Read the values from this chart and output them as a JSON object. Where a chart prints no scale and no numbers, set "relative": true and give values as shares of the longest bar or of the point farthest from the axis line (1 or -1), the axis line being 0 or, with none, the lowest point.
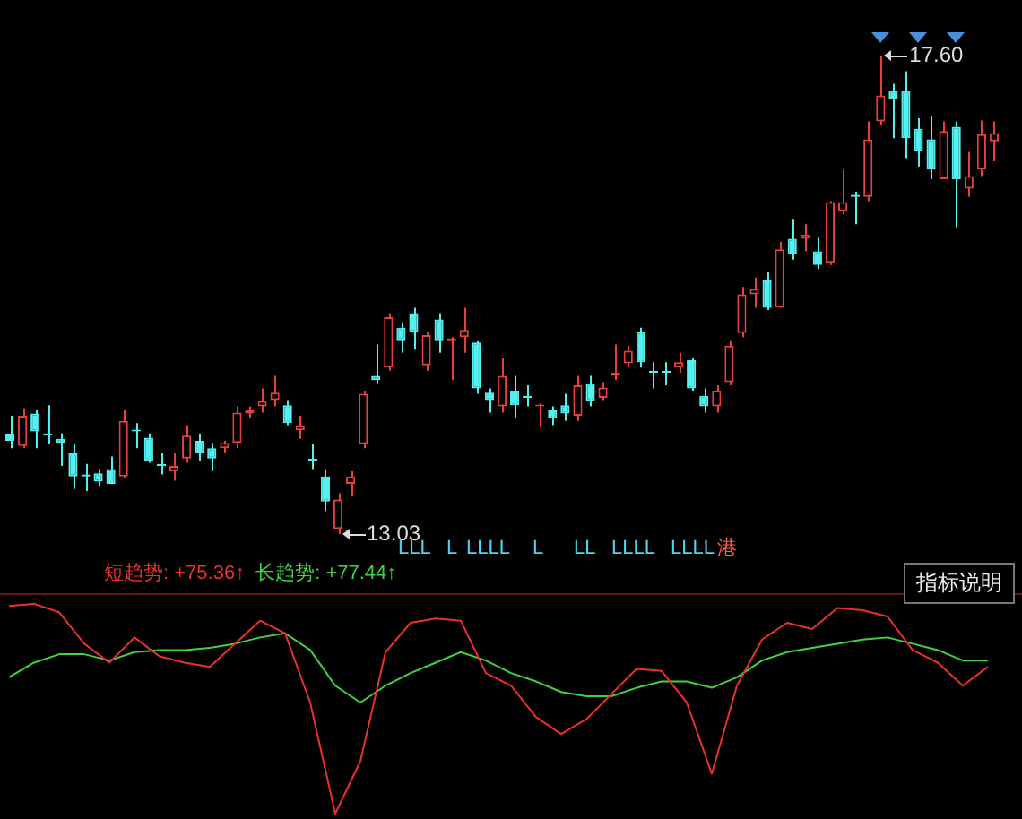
{
  "chart_data": [
    {
      "type": "candlestick",
      "categories": [
        null,
        null,
        null,
        null,
        null,
        null,
        null,
        null,
        null,
        null,
        null,
        null,
        null,
        null,
        null,
        null,
        null,
        null,
        null,
        null,
        null,
        null,
        null,
        null,
        null,
        null,
        null,
        null,
        null,
        null,
        null,
        null,
        null,
        null,
        null,
        null,
        null,
        null,
        null,
        null,
        null,
        null,
        null,
        null,
        null,
        null,
        null,
        null,
        null,
        null,
        null,
        null,
        null,
        null,
        null,
        null,
        null,
        null,
        null,
        null,
        null,
        null,
        null,
        null,
        null,
        null,
        null,
        null,
        null,
        null,
        null,
        null,
        null,
        null,
        null,
        null,
        null,
        null,
        null
      ],
      "ohlc": [
        [
          13.99,
          14.16,
          13.85,
          13.92
        ],
        [
          13.87,
          14.23,
          13.85,
          14.16
        ],
        [
          14.18,
          14.21,
          13.85,
          14.01
        ],
        [
          13.99,
          14.26,
          13.89,
          13.97
        ],
        [
          13.94,
          13.99,
          13.68,
          13.9
        ],
        [
          13.8,
          13.89,
          13.46,
          13.58
        ],
        [
          13.6,
          13.7,
          13.44,
          13.58
        ],
        [
          13.61,
          13.65,
          13.49,
          13.53
        ],
        [
          13.65,
          13.77,
          13.51,
          13.51
        ],
        [
          13.58,
          14.21,
          13.56,
          14.11
        ],
        [
          14.02,
          14.09,
          13.85,
          14.01
        ],
        [
          13.95,
          13.99,
          13.71,
          13.73
        ],
        [
          13.7,
          13.8,
          13.6,
          13.68
        ],
        [
          13.63,
          13.8,
          13.54,
          13.68
        ],
        [
          13.75,
          14.07,
          13.71,
          13.97
        ],
        [
          13.92,
          13.99,
          13.73,
          13.8
        ],
        [
          13.85,
          13.9,
          13.63,
          13.75
        ],
        [
          13.85,
          13.92,
          13.8,
          13.9
        ],
        [
          13.9,
          14.25,
          13.85,
          14.19
        ],
        [
          14.18,
          14.25,
          14.14,
          14.21
        ],
        [
          14.25,
          14.42,
          14.19,
          14.3
        ],
        [
          14.31,
          14.54,
          14.25,
          14.38
        ],
        [
          14.26,
          14.31,
          14.07,
          14.09
        ],
        [
          14.02,
          14.16,
          13.94,
          14.07
        ],
        [
          13.75,
          13.89,
          13.65,
          13.73
        ],
        [
          13.58,
          13.65,
          13.25,
          13.34
        ],
        [
          13.08,
          13.42,
          13.03,
          13.36
        ],
        [
          13.51,
          13.63,
          13.39,
          13.58
        ],
        [
          13.89,
          14.4,
          13.85,
          14.37
        ],
        [
          14.54,
          14.84,
          14.47,
          14.5
        ],
        [
          14.62,
          15.14,
          14.59,
          15.1
        ],
        [
          15.0,
          15.05,
          14.76,
          14.88
        ],
        [
          15.14,
          15.19,
          14.79,
          14.96
        ],
        [
          14.64,
          14.96,
          14.59,
          14.93
        ],
        [
          15.08,
          15.14,
          14.76,
          14.88
        ],
        [
          14.88,
          14.91,
          14.5,
          14.9
        ],
        [
          14.91,
          15.19,
          14.76,
          14.98
        ],
        [
          14.86,
          14.88,
          14.37,
          14.42
        ],
        [
          14.38,
          14.42,
          14.19,
          14.31
        ],
        [
          14.25,
          14.71,
          14.19,
          14.54
        ],
        [
          14.4,
          14.54,
          14.14,
          14.26
        ],
        [
          14.35,
          14.45,
          14.25,
          14.33
        ],
        [
          14.25,
          14.28,
          14.06,
          14.26
        ],
        [
          14.21,
          14.25,
          14.07,
          14.14
        ],
        [
          14.26,
          14.37,
          14.11,
          14.18
        ],
        [
          14.16,
          14.54,
          14.11,
          14.45
        ],
        [
          14.47,
          14.54,
          14.25,
          14.3
        ],
        [
          14.33,
          14.48,
          14.31,
          14.43
        ],
        [
          14.54,
          14.84,
          14.5,
          14.57
        ],
        [
          14.66,
          14.83,
          14.62,
          14.78
        ],
        [
          14.96,
          15.0,
          14.62,
          14.67
        ],
        [
          14.59,
          14.67,
          14.42,
          14.57
        ],
        [
          14.59,
          14.67,
          14.45,
          14.57
        ],
        [
          14.62,
          14.76,
          14.57,
          14.67
        ],
        [
          14.69,
          14.71,
          14.4,
          14.42
        ],
        [
          14.35,
          14.42,
          14.19,
          14.25
        ],
        [
          14.25,
          14.45,
          14.19,
          14.4
        ],
        [
          14.48,
          14.88,
          14.45,
          14.83
        ],
        [
          14.95,
          15.39,
          14.91,
          15.32
        ],
        [
          15.32,
          15.48,
          15.19,
          15.37
        ],
        [
          15.46,
          15.53,
          15.17,
          15.19
        ],
        [
          15.19,
          15.82,
          15.19,
          15.75
        ],
        [
          15.85,
          16.04,
          15.65,
          15.7
        ],
        [
          15.85,
          15.99,
          15.73,
          15.89
        ],
        [
          15.73,
          15.87,
          15.56,
          15.6
        ],
        [
          15.62,
          16.21,
          15.6,
          16.2
        ],
        [
          16.11,
          16.51,
          16.08,
          16.2
        ],
        [
          16.27,
          16.3,
          15.99,
          16.25
        ],
        [
          16.25,
          16.97,
          16.21,
          16.8
        ],
        [
          16.97,
          17.6,
          16.93,
          17.22
        ],
        [
          17.26,
          17.33,
          16.81,
          17.19
        ],
        [
          17.26,
          17.45,
          16.62,
          16.81
        ],
        [
          16.9,
          17.0,
          16.54,
          16.69
        ],
        [
          16.8,
          17.02,
          16.42,
          16.51
        ],
        [
          16.42,
          16.97,
          16.42,
          16.88
        ],
        [
          16.92,
          16.97,
          15.96,
          16.42
        ],
        [
          16.33,
          16.68,
          16.25,
          16.45
        ],
        [
          16.51,
          16.98,
          16.45,
          16.85
        ],
        [
          16.78,
          16.97,
          16.59,
          16.86
        ]
      ],
      "colors": [
        "#54f0f0",
        "#e8403c",
        "#54f0f0",
        "#54f0f0",
        "#54f0f0",
        "#54f0f0",
        "#54f0f0",
        "#54f0f0",
        "#54f0f0",
        "#e8403c",
        "#54f0f0",
        "#54f0f0",
        "#54f0f0",
        "#e8403c",
        "#e8403c",
        "#54f0f0",
        "#54f0f0",
        "#e8403c",
        "#e8403c",
        "#e8403c",
        "#e8403c",
        "#e8403c",
        "#54f0f0",
        "#e8403c",
        "#54f0f0",
        "#54f0f0",
        "#e8403c",
        "#e8403c",
        "#e8403c",
        "#54f0f0",
        "#e8403c",
        "#54f0f0",
        "#54f0f0",
        "#e8403c",
        "#54f0f0",
        "#e8403c",
        "#e8403c",
        "#54f0f0",
        "#54f0f0",
        "#e8403c",
        "#54f0f0",
        "#54f0f0",
        "#e8403c",
        "#54f0f0",
        "#54f0f0",
        "#e8403c",
        "#54f0f0",
        "#e8403c",
        "#e8403c",
        "#e8403c",
        "#54f0f0",
        "#54f0f0",
        "#54f0f0",
        "#e8403c",
        "#54f0f0",
        "#54f0f0",
        "#e8403c",
        "#e8403c",
        "#e8403c",
        "#e8403c",
        "#54f0f0",
        "#e8403c",
        "#54f0f0",
        "#e8403c",
        "#54f0f0",
        "#e8403c",
        "#e8403c",
        "#54f0f0",
        "#e8403c",
        "#e8403c",
        "#54f0f0",
        "#54f0f0",
        "#54f0f0",
        "#54f0f0",
        "#e8403c",
        "#54f0f0",
        "#e8403c",
        "#e8403c",
        "#e8403c"
      ],
      "annotations": [
        "13.03",
        "17.60",
        "LLL",
        "L",
        "LLLL",
        "L",
        "LL",
        "LLLL",
        "LLLL",
        "港"
      ]
    },
    {
      "type": "line",
      "categories": [
        null,
        null,
        null,
        null,
        null,
        null,
        null,
        null,
        null,
        null,
        null,
        null,
        null,
        null,
        null,
        null,
        null,
        null,
        null,
        null,
        null,
        null,
        null,
        null,
        null,
        null,
        null,
        null,
        null,
        null,
        null,
        null,
        null,
        null,
        null,
        null,
        null,
        null,
        null,
        null
      ],
      "relative": true,
      "legend": "top left",
      "series": [
        {
          "name": "短趋势: +75.36↑",
          "color": "#e8322e",
          "values": [
            0.99,
            1.0,
            0.96,
            0.81,
            0.72,
            0.84,
            0.75,
            0.72,
            0.7,
            0.81,
            0.92,
            0.86,
            0.53,
            0.0,
            0.25,
            0.77,
            0.91,
            0.93,
            0.92,
            0.67,
            0.61,
            0.46,
            0.38,
            0.45,
            0.57,
            0.69,
            0.68,
            0.53,
            0.19,
            0.61,
            0.83,
            0.91,
            0.88,
            0.98,
            0.97,
            0.94,
            0.78,
            0.72,
            0.61,
            0.7
          ]
        },
        {
          "name": "长趋势: +77.44↑",
          "color": "#3fd43f",
          "values": [
            0.65,
            0.72,
            0.76,
            0.76,
            0.73,
            0.77,
            0.78,
            0.78,
            0.79,
            0.81,
            0.84,
            0.86,
            0.78,
            0.61,
            0.53,
            0.61,
            0.67,
            0.72,
            0.77,
            0.73,
            0.67,
            0.63,
            0.58,
            0.56,
            0.56,
            0.6,
            0.63,
            0.63,
            0.6,
            0.65,
            0.73,
            0.77,
            0.79,
            0.81,
            0.83,
            0.84,
            0.81,
            0.78,
            0.73,
            0.73
          ]
        }
      ],
      "annotations": [
        "指标说明"
      ]
    }
  ]
}
